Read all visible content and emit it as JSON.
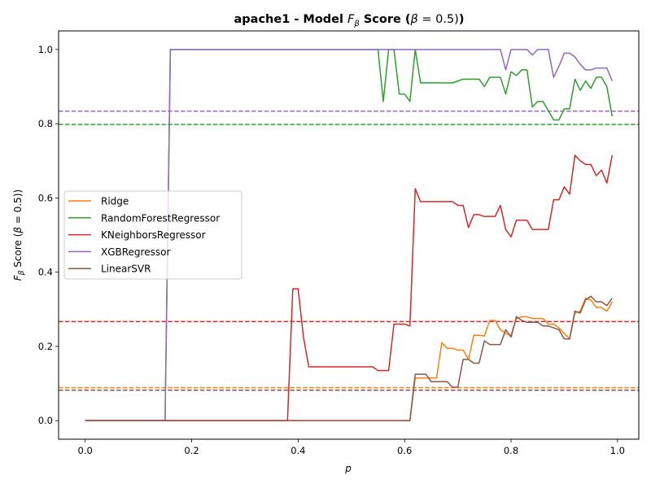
{
  "chart_data": {
    "type": "line",
    "title_prefix": "apache1 - Model ",
    "title_f": "F",
    "title_beta_sub": "β",
    "title_suffix": " Score (",
    "title_beta": "β",
    "title_eq": " = 0.5)",
    "xlabel": "p",
    "ylabel_f": "F",
    "ylabel_beta_sub": "β",
    "ylabel_rest": " Score (",
    "ylabel_beta": "β",
    "ylabel_eq": " = 0.5)",
    "xlim": [
      -0.05,
      1.04
    ],
    "ylim": [
      -0.05,
      1.05
    ],
    "x_ticks": [
      0.0,
      0.2,
      0.4,
      0.6,
      0.8,
      1.0
    ],
    "x_tick_labels": [
      "0.0",
      "0.2",
      "0.4",
      "0.6",
      "0.8",
      "1.0"
    ],
    "y_ticks": [
      0.0,
      0.2,
      0.4,
      0.6,
      0.8,
      1.0
    ],
    "y_tick_labels": [
      "0.0",
      "0.2",
      "0.4",
      "0.6",
      "0.8",
      "1.0"
    ],
    "grid": false,
    "legend_position": "center-left",
    "series": [
      {
        "name": "Ridge",
        "color": "#ff7f0e",
        "x": [
          0.0,
          0.6,
          0.61,
          0.62,
          0.65,
          0.66,
          0.67,
          0.68,
          0.69,
          0.7,
          0.71,
          0.72,
          0.73,
          0.74,
          0.75,
          0.76,
          0.77,
          0.78,
          0.79,
          0.8,
          0.81,
          0.82,
          0.83,
          0.84,
          0.85,
          0.86,
          0.87,
          0.88,
          0.89,
          0.9,
          0.91,
          0.92,
          0.93,
          0.94,
          0.95,
          0.96,
          0.97,
          0.98,
          0.99
        ],
        "y": [
          0.0,
          0.0,
          0.0,
          0.115,
          0.115,
          0.115,
          0.21,
          0.195,
          0.195,
          0.19,
          0.19,
          0.165,
          0.23,
          0.23,
          0.228,
          0.27,
          0.27,
          0.245,
          0.235,
          0.23,
          0.275,
          0.28,
          0.28,
          0.275,
          0.275,
          0.275,
          0.26,
          0.26,
          0.25,
          0.235,
          0.22,
          0.29,
          0.295,
          0.33,
          0.325,
          0.305,
          0.305,
          0.295,
          0.32
        ]
      },
      {
        "name": "RandomForestRegressor",
        "color": "#2ca02c",
        "x": [
          0.0,
          0.15,
          0.16,
          0.55,
          0.56,
          0.57,
          0.58,
          0.59,
          0.6,
          0.61,
          0.62,
          0.63,
          0.64,
          0.65,
          0.66,
          0.67,
          0.68,
          0.69,
          0.7,
          0.71,
          0.72,
          0.73,
          0.74,
          0.75,
          0.76,
          0.77,
          0.78,
          0.79,
          0.8,
          0.81,
          0.82,
          0.83,
          0.84,
          0.85,
          0.86,
          0.87,
          0.88,
          0.89,
          0.9,
          0.91,
          0.92,
          0.93,
          0.94,
          0.95,
          0.96,
          0.97,
          0.98,
          0.99
        ],
        "y": [
          0.0,
          0.0,
          1.0,
          1.0,
          0.86,
          1.0,
          1.0,
          0.88,
          0.88,
          0.86,
          1.0,
          0.91,
          0.91,
          0.91,
          0.91,
          0.91,
          0.91,
          0.91,
          0.915,
          0.92,
          0.92,
          0.92,
          0.92,
          0.9,
          0.925,
          0.925,
          0.925,
          0.88,
          0.94,
          0.93,
          0.945,
          0.945,
          0.845,
          0.86,
          0.86,
          0.835,
          0.81,
          0.81,
          0.84,
          0.84,
          0.92,
          0.89,
          0.915,
          0.895,
          0.925,
          0.925,
          0.9,
          0.82
        ]
      },
      {
        "name": "KNeighborsRegressor",
        "color": "#d62728",
        "x": [
          0.0,
          0.38,
          0.39,
          0.4,
          0.41,
          0.42,
          0.54,
          0.55,
          0.56,
          0.57,
          0.58,
          0.59,
          0.6,
          0.61,
          0.62,
          0.63,
          0.64,
          0.65,
          0.66,
          0.67,
          0.68,
          0.69,
          0.7,
          0.71,
          0.72,
          0.73,
          0.74,
          0.75,
          0.76,
          0.77,
          0.78,
          0.79,
          0.8,
          0.81,
          0.82,
          0.83,
          0.84,
          0.85,
          0.86,
          0.87,
          0.88,
          0.89,
          0.9,
          0.91,
          0.92,
          0.93,
          0.94,
          0.95,
          0.96,
          0.97,
          0.98,
          0.99
        ],
        "y": [
          0.0,
          0.0,
          0.355,
          0.355,
          0.225,
          0.145,
          0.145,
          0.135,
          0.135,
          0.135,
          0.26,
          0.26,
          0.26,
          0.255,
          0.625,
          0.59,
          0.59,
          0.59,
          0.59,
          0.59,
          0.59,
          0.59,
          0.58,
          0.58,
          0.52,
          0.555,
          0.555,
          0.55,
          0.55,
          0.55,
          0.58,
          0.515,
          0.495,
          0.54,
          0.54,
          0.54,
          0.515,
          0.515,
          0.515,
          0.515,
          0.595,
          0.595,
          0.63,
          0.61,
          0.715,
          0.7,
          0.69,
          0.69,
          0.66,
          0.675,
          0.64,
          0.715
        ]
      },
      {
        "name": "XGBRegressor",
        "color": "#9467bd",
        "x": [
          0.0,
          0.15,
          0.16,
          0.78,
          0.79,
          0.8,
          0.81,
          0.82,
          0.83,
          0.84,
          0.85,
          0.86,
          0.87,
          0.88,
          0.89,
          0.9,
          0.91,
          0.92,
          0.93,
          0.94,
          0.95,
          0.96,
          0.97,
          0.98,
          0.99
        ],
        "y": [
          0.0,
          0.0,
          1.0,
          1.0,
          0.945,
          1.0,
          1.0,
          1.0,
          1.0,
          0.985,
          1.0,
          1.0,
          1.0,
          0.925,
          0.955,
          0.99,
          0.99,
          0.98,
          0.96,
          0.945,
          0.945,
          0.95,
          0.95,
          0.95,
          0.915
        ]
      },
      {
        "name": "LinearSVR",
        "color": "#8c564b",
        "x": [
          0.0,
          0.6,
          0.61,
          0.62,
          0.64,
          0.65,
          0.66,
          0.67,
          0.68,
          0.69,
          0.7,
          0.71,
          0.72,
          0.73,
          0.74,
          0.75,
          0.76,
          0.77,
          0.78,
          0.79,
          0.8,
          0.81,
          0.82,
          0.83,
          0.84,
          0.85,
          0.86,
          0.87,
          0.88,
          0.89,
          0.9,
          0.91,
          0.92,
          0.93,
          0.94,
          0.95,
          0.96,
          0.97,
          0.98,
          0.99
        ],
        "y": [
          0.0,
          0.0,
          0.0,
          0.125,
          0.125,
          0.105,
          0.105,
          0.105,
          0.105,
          0.09,
          0.09,
          0.165,
          0.165,
          0.155,
          0.155,
          0.215,
          0.205,
          0.205,
          0.205,
          0.245,
          0.225,
          0.28,
          0.27,
          0.265,
          0.265,
          0.265,
          0.255,
          0.255,
          0.25,
          0.245,
          0.22,
          0.22,
          0.295,
          0.29,
          0.325,
          0.335,
          0.32,
          0.32,
          0.31,
          0.33
        ]
      }
    ],
    "reference_lines": [
      {
        "color": "#ff7f0e",
        "y": 0.089
      },
      {
        "color": "#2ca02c",
        "y": 0.798
      },
      {
        "color": "#d62728",
        "y": 0.267
      },
      {
        "color": "#9467bd",
        "y": 0.834
      },
      {
        "color": "#8c564b",
        "y": 0.082
      }
    ]
  }
}
